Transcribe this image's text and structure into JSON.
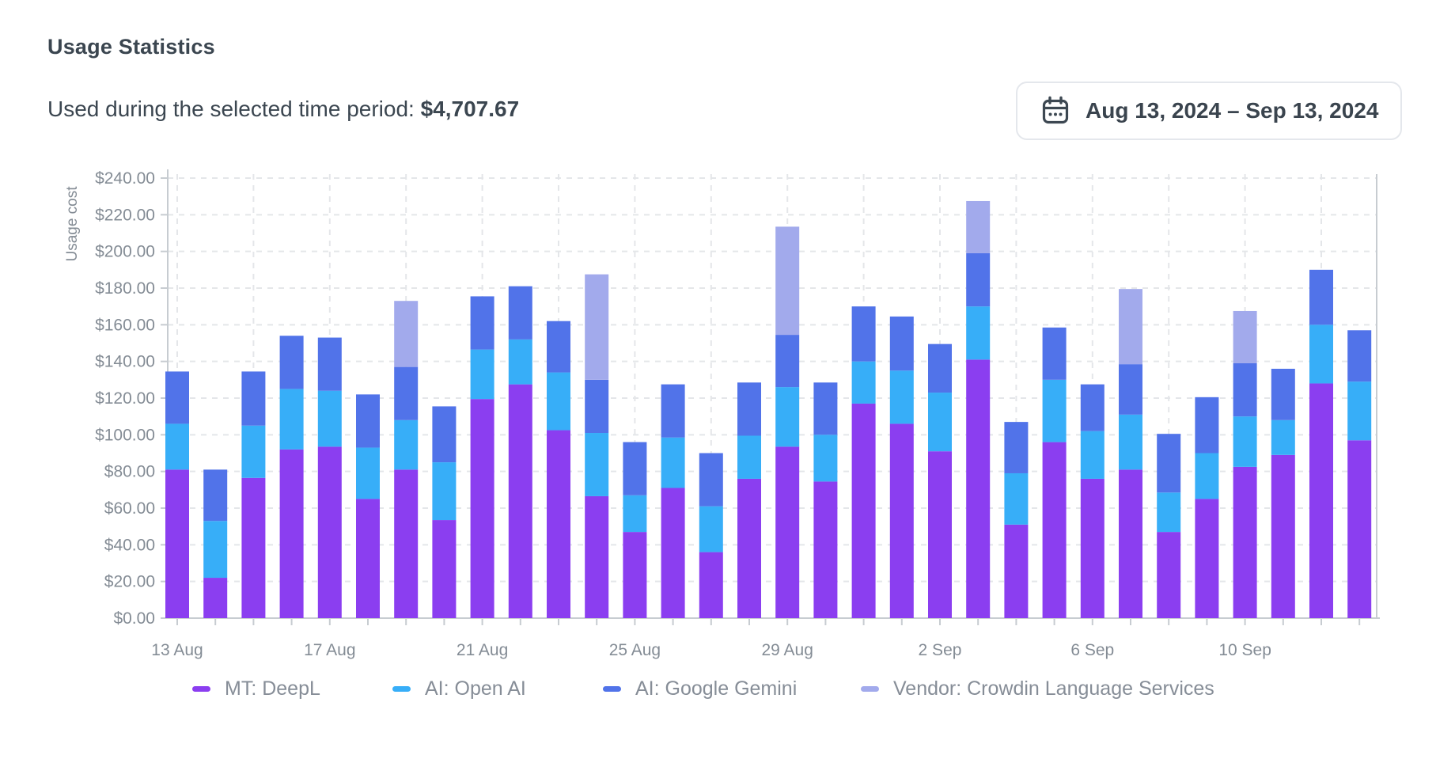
{
  "page": {
    "title": "Usage Statistics"
  },
  "summary": {
    "label": "Used during the selected time period:",
    "amount": "$4,707.67"
  },
  "date_picker": {
    "icon": "calendar-icon",
    "range": "Aug 13, 2024 – Sep 13, 2024"
  },
  "chart_data": {
    "type": "bar",
    "stacked": true,
    "title": "",
    "xlabel": "",
    "ylabel": "Usage cost",
    "ylim": [
      0,
      240
    ],
    "ytick_step": 20,
    "ytick_prefix": "$",
    "ytick_decimals": 2,
    "grid": "dashed",
    "legend_position": "bottom",
    "categories": [
      "13 Aug",
      "14 Aug",
      "15 Aug",
      "16 Aug",
      "17 Aug",
      "18 Aug",
      "19 Aug",
      "20 Aug",
      "21 Aug",
      "22 Aug",
      "23 Aug",
      "24 Aug",
      "25 Aug",
      "26 Aug",
      "27 Aug",
      "28 Aug",
      "29 Aug",
      "30 Aug",
      "31 Aug",
      "1 Sep",
      "2 Sep",
      "3 Sep",
      "4 Sep",
      "5 Sep",
      "6 Sep",
      "7 Sep",
      "8 Sep",
      "9 Sep",
      "10 Sep",
      "11 Sep",
      "12 Sep",
      "13 Sep"
    ],
    "x_labeled_tick_indices": [
      0,
      4,
      8,
      12,
      16,
      20,
      24,
      28
    ],
    "x_labeled_ticks": [
      "13 Aug",
      "17 Aug",
      "21 Aug",
      "25 Aug",
      "29 Aug",
      "2 Sep",
      "6 Sep",
      "10 Sep"
    ],
    "series": [
      {
        "name": "MT: DeepL",
        "color": "#8b3ef0",
        "values": [
          81.0,
          22.0,
          76.5,
          92.0,
          93.5,
          65.0,
          81.0,
          53.5,
          119.5,
          127.5,
          102.5,
          66.5,
          47.0,
          71.0,
          36.0,
          76.0,
          93.5,
          74.5,
          117.0,
          106.0,
          91.0,
          141.0,
          51.0,
          96.0,
          76.0,
          81.0,
          47.0,
          65.0,
          82.5,
          89.0,
          128.0,
          97.0
        ]
      },
      {
        "name": "AI: Open AI",
        "color": "#37aef8",
        "values": [
          25.0,
          31.0,
          28.5,
          33.0,
          30.5,
          28.0,
          27.0,
          31.5,
          27.0,
          24.5,
          31.5,
          34.5,
          20.0,
          27.5,
          25.0,
          23.5,
          32.5,
          25.5,
          23.0,
          29.0,
          32.0,
          29.0,
          28.0,
          34.0,
          26.0,
          30.0,
          21.5,
          25.0,
          27.5,
          19.0,
          32.0,
          32.0
        ]
      },
      {
        "name": "AI: Google Gemini",
        "color": "#5173e9",
        "values": [
          28.5,
          28.0,
          29.5,
          29.0,
          29.0,
          29.0,
          29.0,
          30.5,
          29.0,
          29.0,
          28.0,
          29.0,
          29.0,
          29.0,
          29.0,
          29.0,
          28.5,
          28.5,
          30.0,
          29.5,
          26.5,
          29.0,
          28.0,
          28.5,
          25.5,
          27.5,
          32.0,
          30.5,
          29.0,
          28.0,
          30.0,
          28.0
        ]
      },
      {
        "name": "Vendor: Crowdin Language Services",
        "color": "#a2aaec",
        "values": [
          0,
          0,
          0,
          0,
          0,
          0,
          36.0,
          0,
          0,
          0,
          0,
          57.5,
          0,
          0,
          0,
          0,
          59.0,
          0,
          0,
          0,
          0,
          28.5,
          0,
          0,
          0,
          41.0,
          0,
          0,
          28.5,
          0,
          0,
          0
        ]
      }
    ]
  }
}
